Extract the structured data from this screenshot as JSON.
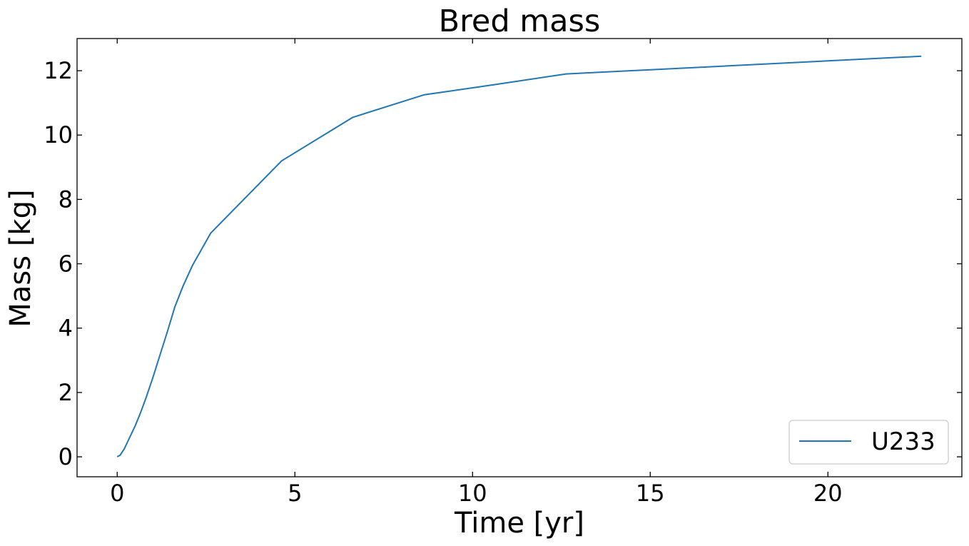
{
  "chart_data": {
    "type": "line",
    "title": "Bred mass",
    "xlabel": "Time [yr]",
    "ylabel": "Mass [kg]",
    "xlim": [
      -1.13,
      23.77
    ],
    "ylim": [
      -0.62,
      13.0
    ],
    "xticks": [
      0,
      5,
      10,
      15,
      20
    ],
    "xtick_labels": [
      "0",
      "5",
      "10",
      "15",
      "20"
    ],
    "yticks": [
      0,
      2,
      4,
      6,
      8,
      10,
      12
    ],
    "ytick_labels": [
      "0",
      "2",
      "4",
      "6",
      "8",
      "10",
      "12"
    ],
    "tick_direction": "in",
    "ticks_on_all_sides": true,
    "grid": false,
    "legend_position": "lower-right",
    "series": [
      {
        "name": "U233",
        "color": "#1f77b4",
        "x": [
          0,
          0.08,
          0.2,
          0.35,
          0.5,
          0.65,
          0.8,
          1.0,
          1.2,
          1.4,
          1.62,
          1.85,
          2.12,
          2.4,
          2.63,
          4.63,
          6.63,
          8.63,
          10.63,
          12.63,
          22.63
        ],
        "y": [
          0,
          0.05,
          0.25,
          0.6,
          0.95,
          1.35,
          1.8,
          2.45,
          3.15,
          3.85,
          4.65,
          5.3,
          5.95,
          6.5,
          6.95,
          9.2,
          10.55,
          11.25,
          11.57,
          11.9,
          12.45
        ]
      }
    ]
  }
}
